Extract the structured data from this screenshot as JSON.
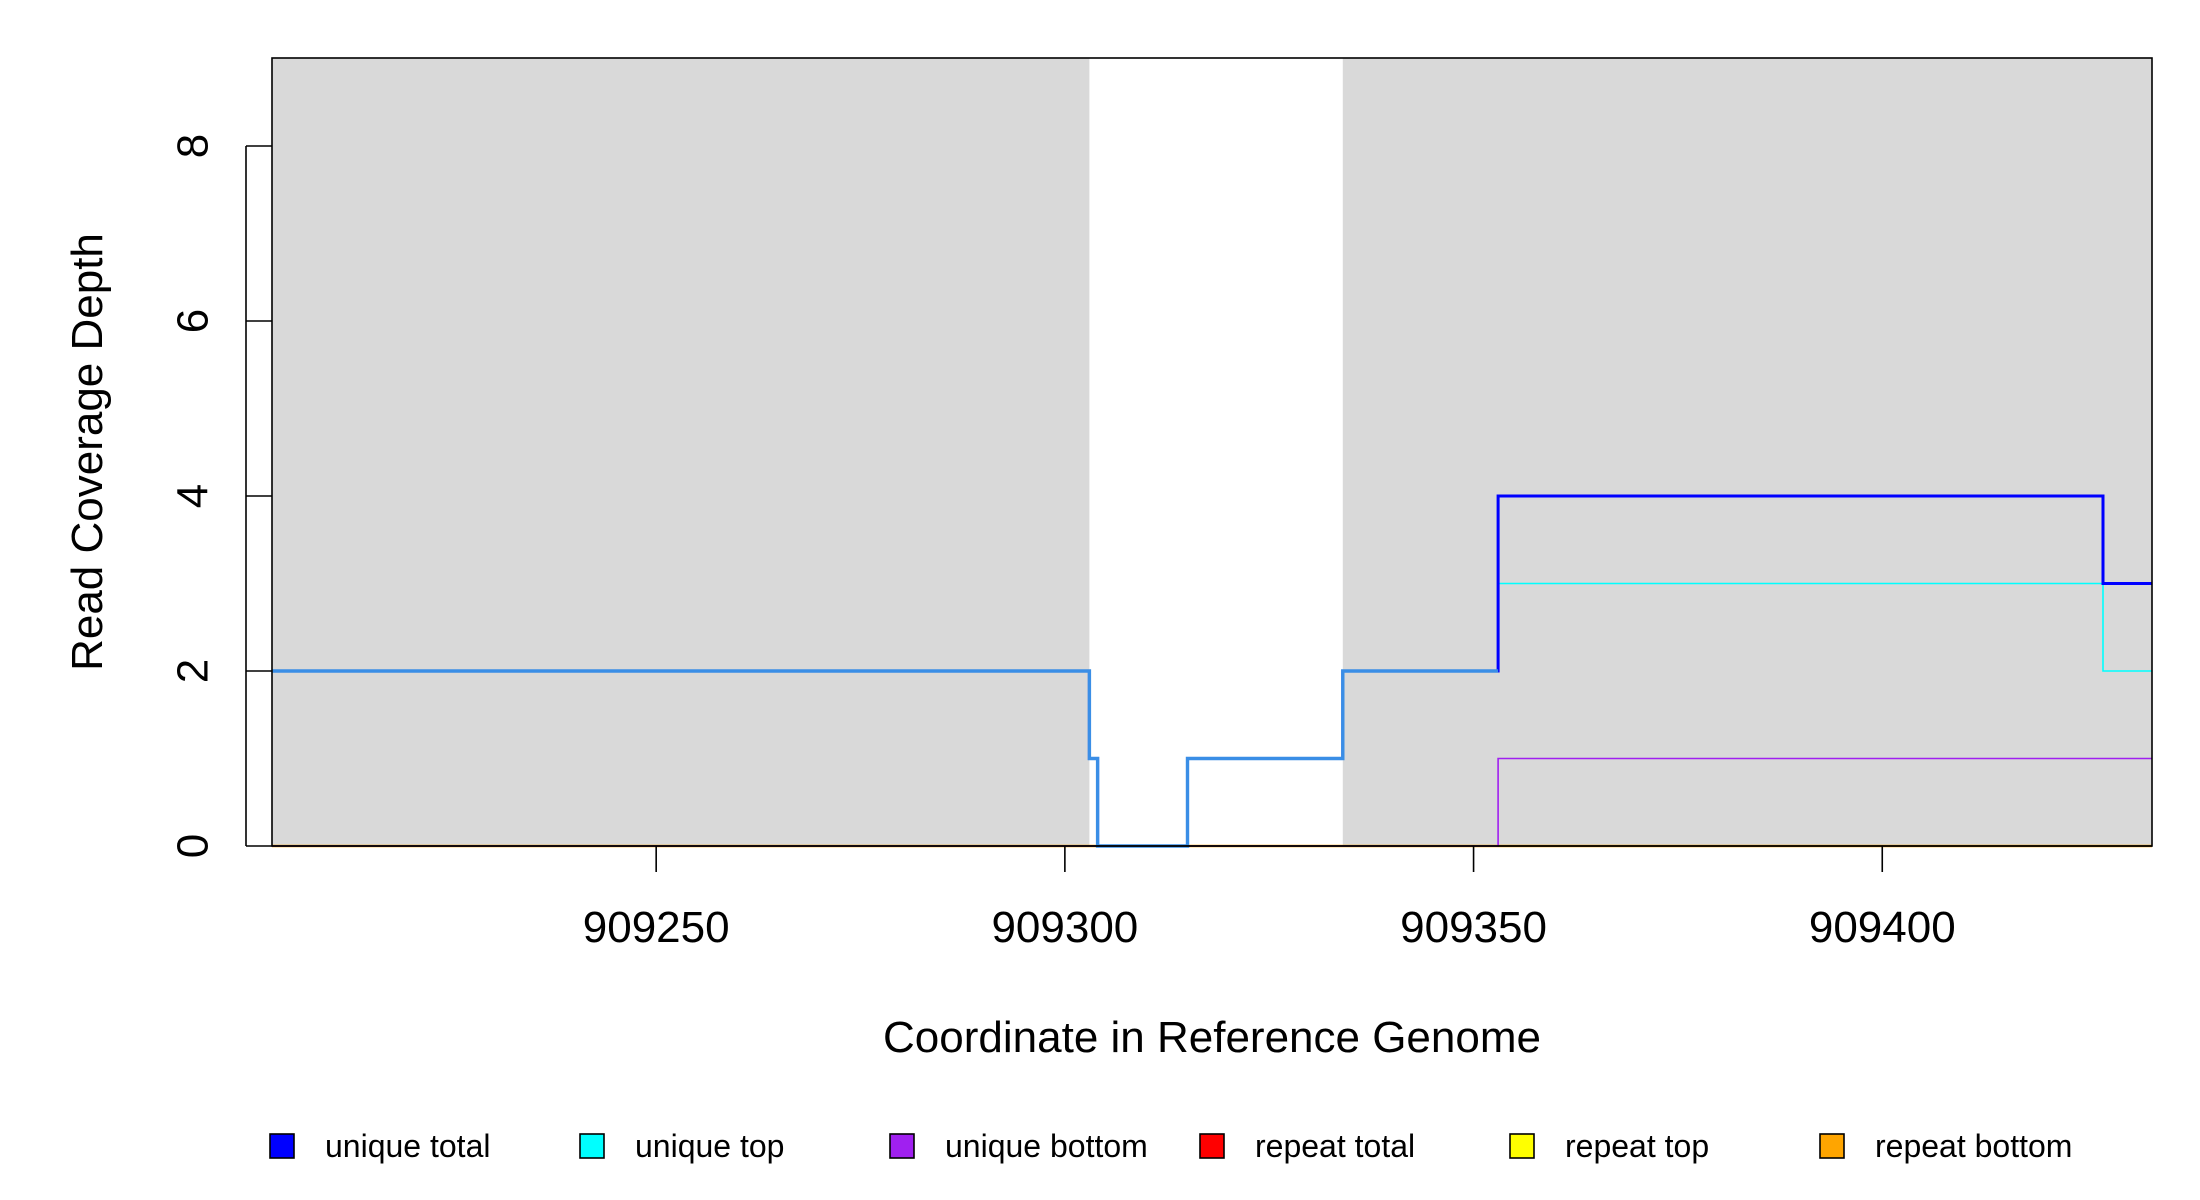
{
  "chart_data": {
    "type": "line",
    "step": true,
    "title": "",
    "xlabel": "Coordinate in Reference Genome",
    "ylabel": "Read Coverage Depth",
    "xlim": [
      909203,
      909433
    ],
    "ylim": [
      0,
      9
    ],
    "x_ticks": [
      909250,
      909300,
      909350,
      909400
    ],
    "x_tick_labels": [
      "909250",
      "909300",
      "909350",
      "909400"
    ],
    "y_ticks": [
      0,
      2,
      4,
      6,
      8
    ],
    "y_tick_labels": [
      "0",
      "2",
      "4",
      "6",
      "8"
    ],
    "grid": false,
    "background": "#d9d9d9",
    "highlight_regions": [
      [
        909303,
        909334
      ]
    ],
    "highlight_color": "#ffffff",
    "legend_position": "bottom",
    "series": [
      {
        "name": "unique total",
        "color": "#0000ff",
        "x": [
          909203,
          909303,
          909304,
          909315,
          909334,
          909353,
          909427,
          909433
        ],
        "y": [
          2,
          1,
          0,
          1,
          2,
          4,
          3,
          3
        ]
      },
      {
        "name": "unique top",
        "color": "#00ffff",
        "x": [
          909203,
          909303,
          909304,
          909315,
          909334,
          909353,
          909427,
          909433
        ],
        "y": [
          2,
          1,
          0,
          1,
          2,
          3,
          2,
          2
        ]
      },
      {
        "name": "unique bottom",
        "color": "#a020f0",
        "x": [
          909203,
          909353,
          909433
        ],
        "y": [
          0,
          1,
          1
        ]
      },
      {
        "name": "repeat total",
        "color": "#ff0000",
        "x": [
          909203,
          909433
        ],
        "y": [
          0,
          0
        ]
      },
      {
        "name": "repeat top",
        "color": "#ffff00",
        "x": [
          909203,
          909433
        ],
        "y": [
          0,
          0
        ]
      },
      {
        "name": "repeat bottom",
        "color": "#ffa500",
        "x": [
          909203,
          909433
        ],
        "y": [
          0,
          0
        ]
      }
    ],
    "overlay_line": {
      "color": "#3a8ee6",
      "x": [
        909203,
        909303,
        909304,
        909315,
        909334,
        909353
      ],
      "y": [
        2,
        1,
        0,
        1,
        2,
        2
      ]
    }
  }
}
